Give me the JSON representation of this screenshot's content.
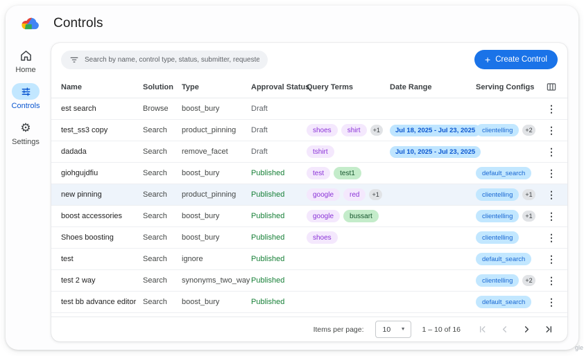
{
  "page": {
    "title": "Controls",
    "watermark_fragment": "gle"
  },
  "sidebar": {
    "items": [
      {
        "label": "Home",
        "icon": "home-icon",
        "active": false
      },
      {
        "label": "Controls",
        "icon": "tune-icon",
        "active": true
      },
      {
        "label": "Settings",
        "icon": "gear-icon",
        "active": false
      }
    ]
  },
  "toolbar": {
    "search_placeholder": "Search by name, control type, status, submitter, requested on",
    "create_plus": "+",
    "create_label": "Create Control"
  },
  "table": {
    "columns": [
      "Name",
      "Solution",
      "Type",
      "Approval Status",
      "Query Terms",
      "Date Range",
      "Serving Configs"
    ],
    "rows": [
      {
        "name": "est search",
        "solution": "Browse",
        "type": "boost_bury",
        "status": "Draft",
        "status_kind": "draft",
        "query_terms": [],
        "date_range": "",
        "serving_configs": [],
        "highlighted": false
      },
      {
        "name": "test_ss3 copy",
        "solution": "Search",
        "type": "product_pinning",
        "status": "Draft",
        "status_kind": "draft",
        "query_terms": [
          {
            "label": "shoes",
            "kind": "purple"
          },
          {
            "label": "shirt",
            "kind": "purple"
          },
          {
            "label": "+1",
            "kind": "count"
          }
        ],
        "date_range": "Jul 18, 2025 - Jul 23, 2025",
        "serving_configs": [
          {
            "label": "clientelling",
            "kind": "blue"
          },
          {
            "label": "+2",
            "kind": "count"
          }
        ],
        "highlighted": false
      },
      {
        "name": "dadada",
        "solution": "Search",
        "type": "remove_facet",
        "status": "Draft",
        "status_kind": "draft",
        "query_terms": [
          {
            "label": "tshirt",
            "kind": "purple"
          }
        ],
        "date_range": "Jul 10, 2025 - Jul 23, 2025",
        "serving_configs": [],
        "highlighted": false
      },
      {
        "name": "giohgujdfiu",
        "solution": "Search",
        "type": "boost_bury",
        "status": "Published",
        "status_kind": "published",
        "query_terms": [
          {
            "label": "test",
            "kind": "purple"
          },
          {
            "label": "test1",
            "kind": "green"
          }
        ],
        "date_range": "",
        "serving_configs": [
          {
            "label": "default_search",
            "kind": "blue"
          }
        ],
        "highlighted": false
      },
      {
        "name": "new pinning",
        "solution": "Search",
        "type": "product_pinning",
        "status": "Published",
        "status_kind": "published",
        "query_terms": [
          {
            "label": "google",
            "kind": "purple"
          },
          {
            "label": "red",
            "kind": "purple"
          },
          {
            "label": "+1",
            "kind": "count"
          }
        ],
        "date_range": "",
        "serving_configs": [
          {
            "label": "clientelling",
            "kind": "blue"
          },
          {
            "label": "+1",
            "kind": "count"
          }
        ],
        "highlighted": true
      },
      {
        "name": "boost accessories",
        "solution": "Search",
        "type": "boost_bury",
        "status": "Published",
        "status_kind": "published",
        "query_terms": [
          {
            "label": "google",
            "kind": "purple"
          },
          {
            "label": "bussart",
            "kind": "green"
          }
        ],
        "date_range": "",
        "serving_configs": [
          {
            "label": "clientelling",
            "kind": "blue"
          },
          {
            "label": "+1",
            "kind": "count"
          }
        ],
        "highlighted": false
      },
      {
        "name": "Shoes boosting",
        "solution": "Search",
        "type": "boost_bury",
        "status": "Published",
        "status_kind": "published",
        "query_terms": [
          {
            "label": "shoes",
            "kind": "purple"
          }
        ],
        "date_range": "",
        "serving_configs": [
          {
            "label": "clientelling",
            "kind": "blue"
          }
        ],
        "highlighted": false
      },
      {
        "name": "test",
        "solution": "Search",
        "type": "ignore",
        "status": "Published",
        "status_kind": "published",
        "query_terms": [],
        "date_range": "",
        "serving_configs": [
          {
            "label": "default_search",
            "kind": "blue"
          }
        ],
        "highlighted": false
      },
      {
        "name": "test 2 way",
        "solution": "Search",
        "type": "synonyms_two_way",
        "status": "Published",
        "status_kind": "published",
        "query_terms": [],
        "date_range": "",
        "serving_configs": [
          {
            "label": "clientelling",
            "kind": "blue"
          },
          {
            "label": "+2",
            "kind": "count"
          }
        ],
        "highlighted": false
      },
      {
        "name": "test bb advance editor",
        "solution": "Search",
        "type": "boost_bury",
        "status": "Published",
        "status_kind": "published",
        "query_terms": [],
        "date_range": "",
        "serving_configs": [
          {
            "label": "default_search",
            "kind": "blue"
          }
        ],
        "highlighted": false
      }
    ]
  },
  "pagination": {
    "items_per_page_label": "Items per page:",
    "page_size": "10",
    "range_label": "1 – 10 of 16"
  }
}
